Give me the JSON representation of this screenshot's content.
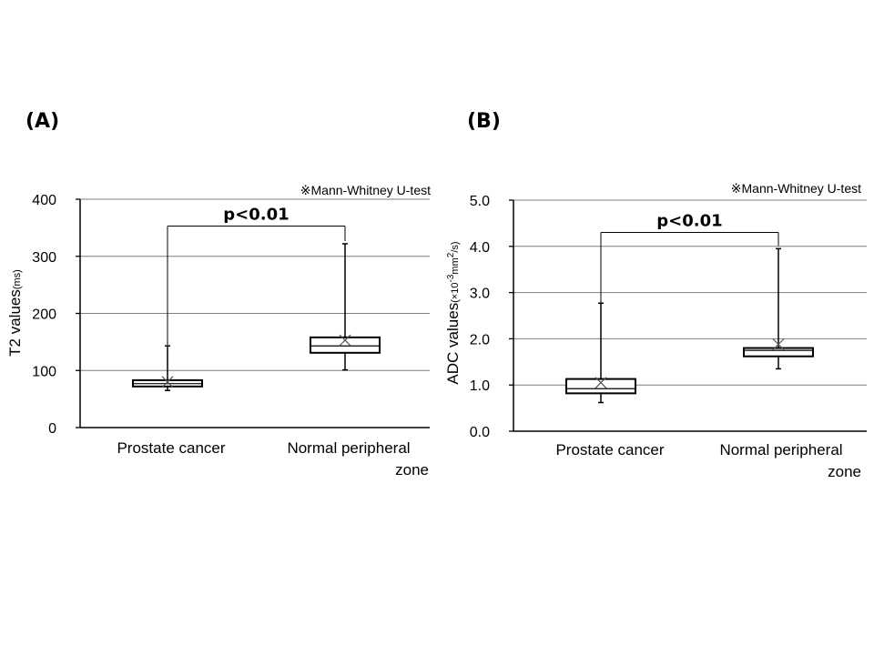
{
  "chart_data": [
    {
      "type": "box",
      "panel_label": "(A)",
      "note": "※Mann-Whitney U-test",
      "ylabel": {
        "main": "T2 values",
        "unit": "(ms)"
      },
      "ylim": [
        0,
        400
      ],
      "yticks": [
        "0",
        "100",
        "200",
        "300",
        "400"
      ],
      "grid": true,
      "categories": [
        {
          "lines": [
            "Prostate cancer"
          ]
        },
        {
          "lines": [
            "Normal peripheral",
            "zone"
          ]
        }
      ],
      "boxes": [
        {
          "min": 65,
          "q1": 72,
          "median": 77,
          "q3": 83,
          "max": 143,
          "mean": 80
        },
        {
          "min": 101,
          "q1": 131,
          "median": 143,
          "q3": 158,
          "max": 322,
          "mean": 153
        }
      ],
      "significance": {
        "text": "p<0.01",
        "bracket_y": 353
      },
      "tick_precision": 0
    },
    {
      "type": "box",
      "panel_label": "(B)",
      "note": "※Mann-Whitney U-test",
      "ylabel": {
        "main": "ADC values",
        "unit_pre": "(×10",
        "unit_exp1": "-3",
        "unit_mid": "mm",
        "unit_exp2": "2",
        "unit_post": "/s)"
      },
      "ylim": [
        0,
        5
      ],
      "yticks": [
        "0.0",
        "1.0",
        "2.0",
        "3.0",
        "4.0",
        "5.0"
      ],
      "grid": true,
      "categories": [
        {
          "lines": [
            "Prostate cancer"
          ]
        },
        {
          "lines": [
            "Normal peripheral",
            "zone"
          ]
        }
      ],
      "boxes": [
        {
          "min": 0.62,
          "q1": 0.82,
          "median": 0.92,
          "q3": 1.13,
          "max": 2.77,
          "mean": 1.05
        },
        {
          "min": 1.35,
          "q1": 1.62,
          "median": 1.75,
          "q3": 1.8,
          "max": 3.95,
          "mean": 1.88
        }
      ],
      "significance": {
        "text": "p<0.01",
        "bracket_y": 4.3
      },
      "tick_precision": 1
    }
  ]
}
